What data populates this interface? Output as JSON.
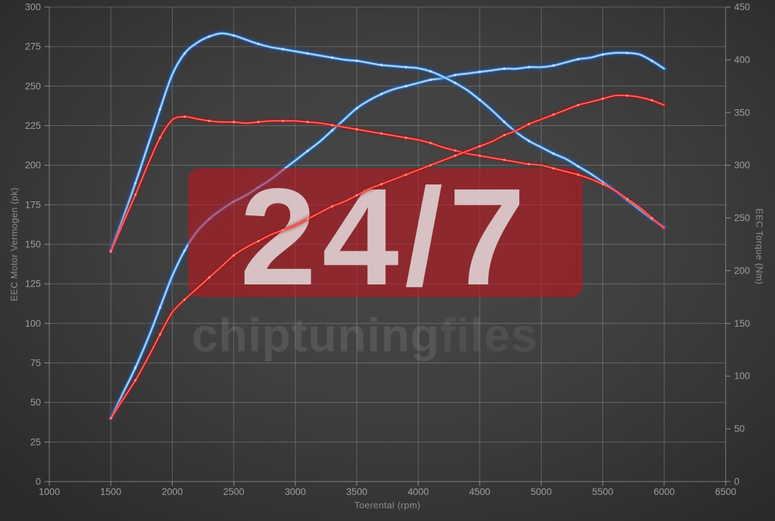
{
  "axes": {
    "x": {
      "title": "Toerental (rpm)",
      "min": 1000,
      "max": 6500,
      "tick_step": 500
    },
    "y_left": {
      "title": "EEC Motor Vermogen (pk)",
      "min": 0,
      "max": 300,
      "tick_step": 25
    },
    "y_right": {
      "title": "EEC Torque (Nm)",
      "min": 0,
      "max": 450,
      "tick_step": 50
    }
  },
  "watermark": {
    "badge_text": "24/7",
    "brand_text_light": "chiptuning",
    "brand_text_dark": "files",
    "badge_fill": "rgba(193,21,30,0.58)",
    "badge_text_color": "rgba(232,227,227,0.82)",
    "brand_light_color": "rgba(255,255,255,0.10)",
    "brand_dark_color": "rgba(255,255,255,0.07)"
  },
  "colors": {
    "blue": {
      "glow": "#17averted",
      "core": "#4493dd",
      "hi": "#cfe8fa"
    },
    "blue_fixed": {
      "glow": "#1a55b0",
      "core": "#4493dd",
      "hi": "#cfe8fa"
    },
    "red": {
      "glow": "#a80f0f",
      "core": "#e42020",
      "hi": "#ff9585"
    },
    "grid": "rgba(255,255,255,0.22)",
    "axis_line": "rgba(255,255,255,0.38)",
    "tick": "rgba(255,255,255,0.45)",
    "tick_label": "#9e9e9e"
  },
  "chart_data": {
    "type": "line",
    "title": "",
    "xlabel": "Toerental (rpm)",
    "ylabel_left": "EEC Motor Vermogen (pk)",
    "ylabel_right": "EEC Torque (Nm)",
    "x_range": [
      1000,
      6500
    ],
    "y_left_range": [
      0,
      300
    ],
    "y_right_range": [
      0,
      450
    ],
    "grid": true,
    "legend": "none",
    "x_rpm": [
      1500,
      1600,
      1700,
      1800,
      1900,
      2000,
      2100,
      2200,
      2300,
      2400,
      2500,
      2600,
      2700,
      2800,
      2900,
      3000,
      3100,
      3200,
      3300,
      3400,
      3500,
      3600,
      3700,
      3800,
      3900,
      4000,
      4100,
      4200,
      4300,
      4400,
      4500,
      4600,
      4700,
      4800,
      4900,
      5000,
      5100,
      5200,
      5300,
      5400,
      5500,
      5600,
      5700,
      5800,
      5900,
      6000
    ],
    "series": [
      {
        "id": "power-tuned",
        "axis": "left",
        "color": "blue",
        "under_watermark": true,
        "values": [
          40,
          56,
          72,
          90,
          110,
          130,
          146,
          158,
          166,
          172,
          177,
          181,
          186,
          191,
          197,
          203,
          209,
          215,
          222,
          229,
          236,
          241,
          245,
          248,
          250,
          252,
          254,
          255,
          257,
          258,
          259,
          260,
          261,
          261,
          262,
          262,
          263,
          265,
          267,
          268,
          270,
          271,
          271,
          270,
          266,
          261
        ]
      },
      {
        "id": "torque-tuned",
        "axis": "right",
        "color": "blue",
        "under_watermark": false,
        "values": [
          219,
          250,
          283,
          318,
          353,
          386,
          406,
          416,
          422,
          425,
          423,
          419,
          415,
          412,
          410,
          408,
          406,
          404,
          402,
          400,
          399,
          397,
          395,
          394,
          393,
          392,
          389,
          384,
          378,
          371,
          362,
          352,
          341,
          331,
          323,
          317,
          311,
          306,
          299,
          292,
          284,
          276,
          267,
          258,
          249,
          241
        ]
      },
      {
        "id": "torque-stock",
        "axis": "right",
        "color": "red",
        "under_watermark": false,
        "values": [
          218,
          245,
          272,
          300,
          326,
          343,
          346,
          344,
          342,
          341,
          341,
          340,
          341,
          342,
          342,
          342,
          341,
          340,
          338,
          336,
          334,
          332,
          330,
          328,
          326,
          324,
          321,
          317,
          314,
          311,
          309,
          307,
          305,
          303,
          301,
          300,
          297,
          294,
          291,
          287,
          282,
          276,
          268,
          260,
          250,
          240
        ]
      },
      {
        "id": "power-stock",
        "axis": "left",
        "color": "red",
        "under_watermark": false,
        "values": [
          40,
          52,
          64,
          78,
          93,
          107,
          115,
          122,
          129,
          136,
          143,
          148,
          152,
          156,
          159,
          162,
          166,
          170,
          174,
          177,
          181,
          185,
          188,
          191,
          194,
          197,
          200,
          203,
          206,
          209,
          212,
          215,
          219,
          222,
          226,
          229,
          232,
          235,
          238,
          240,
          242,
          244,
          244,
          243,
          241,
          238
        ]
      }
    ]
  }
}
